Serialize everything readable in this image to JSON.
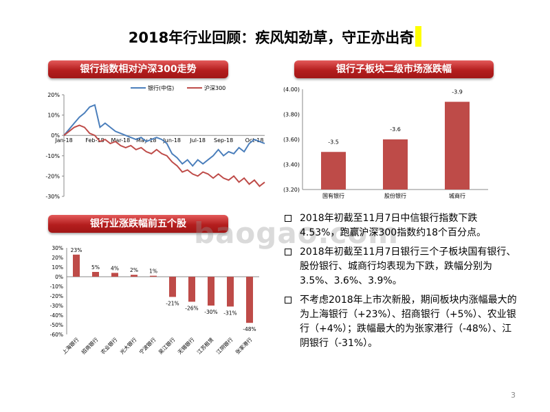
{
  "title": "2018年行业回顾：疾风知劲草，守正亦出奇",
  "page_number": "3",
  "watermark": "baogao.com",
  "colors": {
    "bank": "#4a7ebb",
    "hs300": "#be4b48",
    "bar": "#be4b48",
    "banner": "#b41e1e"
  },
  "bullets": [
    "2018年初截至11月7日中信银行指数下跌4.53%，跑赢沪深300指数约18个百分点。",
    "2018年初截至11月7日银行三个子板块国有银行、股份银行、城商行均表现为下跌，跌幅分别为3.5%、3.6%、3.9%。",
    "不考虑2018年上市次新股，期间板块内涨幅最大的为上海银行（+23%）、招商银行（+5%）、农业银行（+4%）；跌幅最大的为张家港行（-48%）、江阴银行（-31%）。"
  ],
  "chart_data": [
    {
      "type": "line",
      "title": "银行指数相对沪深300走势",
      "x_ticks": [
        "Jan-18",
        "Feb-18",
        "Mar-18",
        "May-18",
        "Jun-18",
        "Jul-18",
        "Sep-18",
        "Oct-18"
      ],
      "x_tick_index": [
        0,
        6,
        11,
        16,
        21,
        26,
        31,
        37
      ],
      "y_ticks": [
        "20%",
        "10%",
        "0%",
        "-10%",
        "-20%",
        "-30%"
      ],
      "ylim": [
        -30,
        20
      ],
      "legend": "top-center",
      "series": [
        {
          "name": "银行(中信)",
          "values": [
            0,
            3,
            6,
            9,
            11,
            14,
            15,
            4,
            6,
            4,
            2,
            1,
            0,
            -1,
            -2,
            -1,
            -3,
            -2,
            -1,
            -2,
            -4,
            -9,
            -11,
            -14,
            -12,
            -15,
            -12,
            -14,
            -12,
            -10,
            -7,
            -10,
            -8,
            -9,
            -6,
            -8,
            -4,
            -2,
            -3,
            -4
          ]
        },
        {
          "name": "沪深300",
          "values": [
            0,
            2,
            4,
            5,
            4,
            1,
            0,
            -3,
            -2,
            -4,
            -3,
            -5,
            -6,
            -5,
            -7,
            -6,
            -8,
            -9,
            -7,
            -9,
            -10,
            -13,
            -15,
            -18,
            -17,
            -19,
            -20,
            -18,
            -19,
            -21,
            -19,
            -21,
            -22,
            -20,
            -23,
            -21,
            -24,
            -22,
            -25,
            -23
          ]
        }
      ]
    },
    {
      "type": "bar",
      "title": "银行子板块二级市场涨跌幅",
      "categories": [
        "国有银行",
        "股份银行",
        "城商行"
      ],
      "values": [
        -3.5,
        -3.6,
        -3.9
      ],
      "y_ticks": [
        "(4.00)",
        "(3.80)",
        "(3.60)",
        "(3.40)",
        "(3.20)"
      ],
      "ylim": [
        -3.2,
        -4.0
      ]
    },
    {
      "type": "bar",
      "title": "银行业涨跌幅前五个股",
      "categories": [
        "上海银行",
        "招商银行",
        "农业银行",
        "光大银行",
        "宁波银行",
        "吴江银行",
        "无锡银行",
        "江苏租赁",
        "江阴银行",
        "张家港行"
      ],
      "values": [
        23,
        5,
        4,
        2,
        1,
        -21,
        -26,
        -30,
        -31,
        -48
      ],
      "labels": [
        "23%",
        "5%",
        "4%",
        "2%",
        "1%",
        "-21%",
        "-26%",
        "-30%",
        "-31%",
        "-48%"
      ],
      "y_ticks": [
        "30%",
        "20%",
        "10%",
        "0%",
        "-10%",
        "-20%",
        "-30%",
        "-40%",
        "-50%",
        "-60%"
      ],
      "ylim": [
        -60,
        30
      ]
    }
  ]
}
